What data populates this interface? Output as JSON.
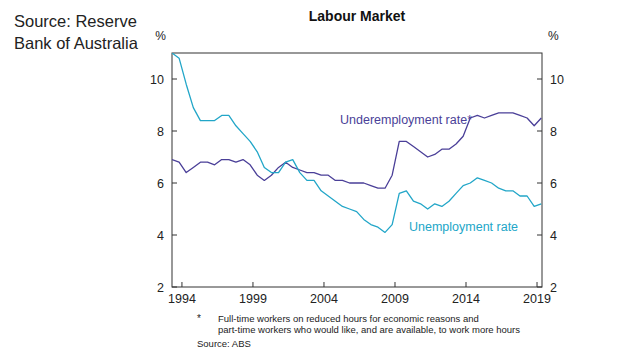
{
  "chart_data": {
    "type": "line",
    "title": "Labour Market",
    "source_lines": [
      "Source: Reserve",
      "Bank of Australia"
    ],
    "y_unit_label": "%",
    "y2_unit_label": "%",
    "footnote": {
      "marker": "*",
      "lines": [
        "Full-time workers on reduced hours for economic reasons and",
        "part-time workers who would like, and are available, to work more hours"
      ]
    },
    "footer_source": "Source: ABS",
    "x": [
      1993.3,
      1993.8,
      1994.3,
      1994.8,
      1995.3,
      1995.8,
      1996.3,
      1996.8,
      1997.3,
      1997.8,
      1998.3,
      1998.8,
      1999.3,
      1999.8,
      2000.3,
      2000.8,
      2001.3,
      2001.8,
      2002.3,
      2002.8,
      2003.3,
      2003.8,
      2004.3,
      2004.8,
      2005.3,
      2005.8,
      2006.3,
      2006.8,
      2007.3,
      2007.8,
      2008.3,
      2008.8,
      2009.3,
      2009.8,
      2010.3,
      2010.8,
      2011.3,
      2011.8,
      2012.3,
      2012.8,
      2013.3,
      2013.8,
      2014.3,
      2014.8,
      2015.3,
      2015.8,
      2016.3,
      2016.8,
      2017.3,
      2017.8,
      2018.3,
      2018.8,
      2019.3
    ],
    "series": [
      {
        "name": "Underemployment rate*",
        "color": "#4a3f98",
        "values": [
          6.9,
          6.8,
          6.4,
          6.6,
          6.8,
          6.8,
          6.7,
          6.9,
          6.9,
          6.8,
          6.9,
          6.7,
          6.3,
          6.1,
          6.3,
          6.6,
          6.8,
          6.6,
          6.5,
          6.4,
          6.4,
          6.3,
          6.3,
          6.1,
          6.1,
          6.0,
          6.0,
          6.0,
          5.9,
          5.8,
          5.8,
          6.3,
          7.6,
          7.6,
          7.4,
          7.2,
          7.0,
          7.1,
          7.3,
          7.3,
          7.5,
          7.8,
          8.5,
          8.6,
          8.5,
          8.6,
          8.7,
          8.7,
          8.7,
          8.6,
          8.5,
          8.2,
          8.5
        ]
      },
      {
        "name": "Unemployment rate",
        "color": "#22a6c8",
        "values": [
          11.0,
          10.8,
          9.8,
          8.9,
          8.4,
          8.4,
          8.4,
          8.6,
          8.6,
          8.2,
          7.9,
          7.6,
          7.2,
          6.6,
          6.4,
          6.4,
          6.8,
          6.9,
          6.4,
          6.1,
          6.1,
          5.7,
          5.5,
          5.3,
          5.1,
          5.0,
          4.9,
          4.6,
          4.4,
          4.3,
          4.1,
          4.4,
          5.6,
          5.7,
          5.3,
          5.2,
          5.0,
          5.2,
          5.1,
          5.3,
          5.6,
          5.9,
          6.0,
          6.2,
          6.1,
          6.0,
          5.8,
          5.7,
          5.7,
          5.5,
          5.5,
          5.1,
          5.2
        ]
      }
    ],
    "xlim": [
      1993.3,
      2019.35
    ],
    "xticks": [
      1994,
      1999,
      2004,
      2009,
      2014,
      2019
    ],
    "ylim": [
      2,
      11
    ],
    "yticks": [
      2,
      4,
      6,
      8,
      10
    ],
    "y2lim": [
      2,
      11
    ],
    "y2ticks": [
      2,
      4,
      6,
      8,
      10
    ],
    "grid": false
  }
}
